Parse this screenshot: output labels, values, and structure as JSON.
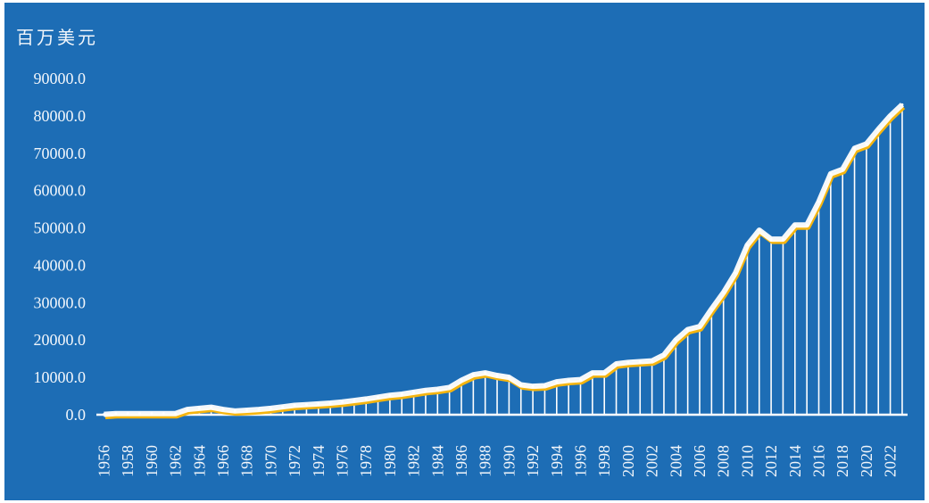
{
  "chart_data": {
    "type": "line",
    "unit_label": "百万美元",
    "title": "",
    "xlabel": "",
    "ylabel": "",
    "ylim": [
      0,
      90000
    ],
    "yticks": [
      "0.0",
      "10000.0",
      "20000.0",
      "30000.0",
      "40000.0",
      "50000.0",
      "60000.0",
      "70000.0",
      "80000.0",
      "90000.0"
    ],
    "x": [
      1956,
      1957,
      1958,
      1959,
      1960,
      1961,
      1962,
      1963,
      1964,
      1965,
      1966,
      1967,
      1968,
      1969,
      1970,
      1971,
      1972,
      1973,
      1974,
      1975,
      1976,
      1977,
      1978,
      1979,
      1980,
      1981,
      1982,
      1983,
      1984,
      1985,
      1986,
      1987,
      1988,
      1989,
      1990,
      1991,
      1992,
      1993,
      1994,
      1995,
      1996,
      1997,
      1998,
      1999,
      2000,
      2001,
      2002,
      2003,
      2004,
      2005,
      2006,
      2007,
      2008,
      2009,
      2010,
      2011,
      2012,
      2013,
      2014,
      2015,
      2016,
      2017,
      2018,
      2019,
      2020,
      2021,
      2022,
      2023
    ],
    "xticks": [
      "1956",
      "1958",
      "1960",
      "1962",
      "1964",
      "1966",
      "1968",
      "1970",
      "1972",
      "1974",
      "1976",
      "1978",
      "1980",
      "1982",
      "1984",
      "1986",
      "1988",
      "1990",
      "1992",
      "1994",
      "1996",
      "1998",
      "2000",
      "2002",
      "2004",
      "2006",
      "2008",
      "2010",
      "2012",
      "2014",
      "2016",
      "2018",
      "2020",
      "2022"
    ],
    "values": [
      100,
      300,
      300,
      300,
      300,
      300,
      300,
      1400,
      1700,
      2000,
      1400,
      1000,
      1200,
      1400,
      1700,
      2100,
      2500,
      2700,
      2900,
      3100,
      3400,
      3800,
      4200,
      4700,
      5200,
      5500,
      6000,
      6500,
      6800,
      7300,
      9200,
      10700,
      11200,
      10500,
      10000,
      8000,
      7600,
      7750,
      8800,
      9200,
      9400,
      11200,
      11200,
      13600,
      14000,
      14200,
      14400,
      16000,
      20000,
      22800,
      23600,
      28300,
      32700,
      37900,
      45400,
      49400,
      47000,
      47000,
      50800,
      50800,
      57000,
      64500,
      65700,
      71300,
      72500,
      76400,
      80000,
      83000
    ],
    "grid": false,
    "legend": "none",
    "colors": {
      "background": "#1d6db5",
      "line": "#ffffff",
      "line_shadow": "#f5b50f",
      "drop_lines": "#ffffff",
      "text": "#f2f6fb"
    }
  }
}
